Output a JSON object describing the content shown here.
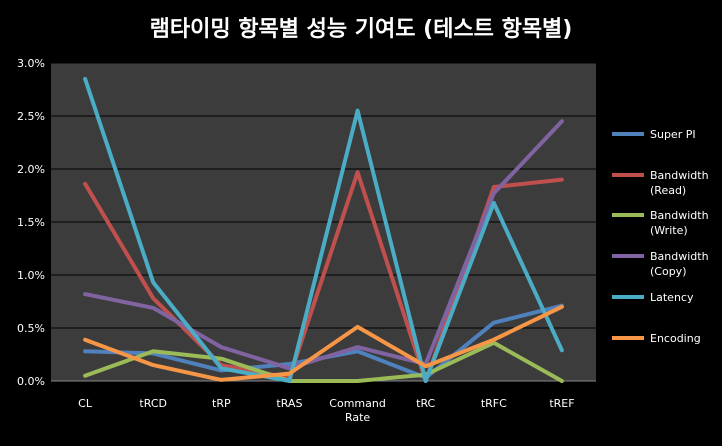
{
  "chart_data": {
    "type": "line",
    "title": "램타이밍 항목별 성능 기여도 (테스트 항목별)",
    "xlabel": "",
    "ylabel": "",
    "categories": [
      "CL",
      "tRCD",
      "tRP",
      "tRAS",
      "Command Rate",
      "tRC",
      "tRFC",
      "tREF"
    ],
    "ylim": [
      0,
      0.03
    ],
    "yticks": [
      0,
      0.005,
      0.01,
      0.015,
      0.02,
      0.025,
      0.03
    ],
    "ytick_labels": [
      "0.0%",
      "0.5%",
      "1.0%",
      "1.5%",
      "2.0%",
      "2.5%",
      "3.0%"
    ],
    "grid": true,
    "legend_position": "right",
    "series": [
      {
        "name": "Super PI",
        "color": "#4F81BD",
        "values": [
          0.0028,
          0.0026,
          0.001,
          0.0016,
          0.0028,
          0.0003,
          0.0055,
          0.0071
        ]
      },
      {
        "name": "Bandwidth (Read)",
        "color": "#C0504D",
        "values": [
          0.0186,
          0.0078,
          0.0015,
          0.0003,
          0.0197,
          0.0,
          0.0183,
          0.019
        ]
      },
      {
        "name": "Bandwidth (Write)",
        "color": "#9BBB59",
        "values": [
          0.0005,
          0.0028,
          0.0021,
          0.0,
          0.0,
          0.0006,
          0.0036,
          0.0
        ]
      },
      {
        "name": "Bandwidth (Copy)",
        "color": "#8064A2",
        "values": [
          0.0082,
          0.0069,
          0.0032,
          0.0012,
          0.0032,
          0.0016,
          0.0177,
          0.0245
        ]
      },
      {
        "name": "Latency",
        "color": "#4BACC6",
        "values": [
          0.0285,
          0.0093,
          0.0012,
          0.0,
          0.0255,
          0.0,
          0.0168,
          0.0029
        ]
      },
      {
        "name": "Encoding",
        "color": "#F79646",
        "values": [
          0.0039,
          0.0015,
          0.0001,
          0.0007,
          0.0051,
          0.0014,
          0.0039,
          0.007
        ]
      }
    ],
    "legend_labels": [
      [
        "Super PI"
      ],
      [
        "Bandwidth",
        "(Read)"
      ],
      [
        "Bandwidth",
        "(Write)"
      ],
      [
        "Bandwidth",
        "(Copy)"
      ],
      [
        "Latency"
      ],
      [
        "Encoding"
      ]
    ],
    "category_labels": [
      [
        "CL"
      ],
      [
        "tRCD"
      ],
      [
        "tRP"
      ],
      [
        "tRAS"
      ],
      [
        "Command",
        "Rate"
      ],
      [
        "tRC"
      ],
      [
        "tRFC"
      ],
      [
        "tREF"
      ]
    ]
  }
}
